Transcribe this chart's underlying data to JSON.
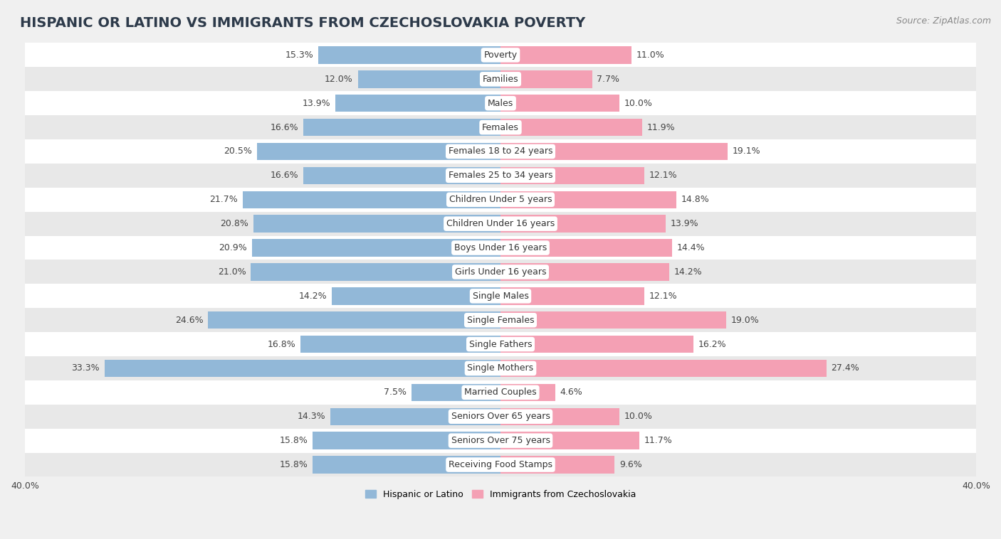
{
  "title": "HISPANIC OR LATINO VS IMMIGRANTS FROM CZECHOSLOVAKIA POVERTY",
  "source": "Source: ZipAtlas.com",
  "categories": [
    "Poverty",
    "Families",
    "Males",
    "Females",
    "Females 18 to 24 years",
    "Females 25 to 34 years",
    "Children Under 5 years",
    "Children Under 16 years",
    "Boys Under 16 years",
    "Girls Under 16 years",
    "Single Males",
    "Single Females",
    "Single Fathers",
    "Single Mothers",
    "Married Couples",
    "Seniors Over 65 years",
    "Seniors Over 75 years",
    "Receiving Food Stamps"
  ],
  "hispanic_values": [
    15.3,
    12.0,
    13.9,
    16.6,
    20.5,
    16.6,
    21.7,
    20.8,
    20.9,
    21.0,
    14.2,
    24.6,
    16.8,
    33.3,
    7.5,
    14.3,
    15.8,
    15.8
  ],
  "czech_values": [
    11.0,
    7.7,
    10.0,
    11.9,
    19.1,
    12.1,
    14.8,
    13.9,
    14.4,
    14.2,
    12.1,
    19.0,
    16.2,
    27.4,
    4.6,
    10.0,
    11.7,
    9.6
  ],
  "hispanic_color": "#92b8d8",
  "czech_color": "#f4a0b4",
  "bar_height": 0.72,
  "background_color": "#f0f0f0",
  "row_white_color": "#ffffff",
  "row_gray_color": "#e8e8e8",
  "legend_label_hispanic": "Hispanic or Latino",
  "legend_label_czech": "Immigrants from Czechoslovakia",
  "title_fontsize": 14,
  "source_fontsize": 9,
  "label_fontsize": 9,
  "category_fontsize": 9,
  "axis_fontsize": 9,
  "axis_label_left": "40.0%",
  "axis_label_right": "40.0%"
}
